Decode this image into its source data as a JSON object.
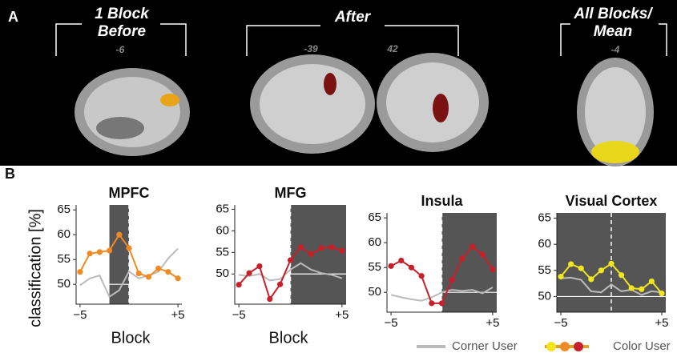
{
  "figure": {
    "panel_a": "A",
    "panel_b": "B",
    "groups": [
      {
        "title_lines": [
          "1 Block",
          "Before"
        ],
        "slices": [
          "-6"
        ]
      },
      {
        "title_lines": [
          "After"
        ],
        "slices": [
          "-39",
          "42"
        ]
      },
      {
        "title_lines": [
          "All Blocks/",
          "Mean"
        ],
        "slices": [
          "-4"
        ]
      }
    ],
    "y_label": "classification [%]",
    "x_label": "Block",
    "legend": {
      "corner": "Corner User",
      "color": "Color User"
    }
  },
  "chart_data": [
    {
      "type": "line",
      "title": "MPFC",
      "x": [
        -5,
        -4,
        -3,
        -2,
        -1,
        0,
        1,
        2,
        3,
        4,
        5
      ],
      "xlim": [
        -5.4,
        5.4
      ],
      "xticks": [
        {
          "value": -5,
          "label": "−5"
        },
        {
          "value": 5,
          "label": "+5"
        }
      ],
      "ylim": [
        46,
        66
      ],
      "yticks": [
        50,
        55,
        60,
        65
      ],
      "shade": [
        -2,
        0
      ],
      "vline": 0,
      "hline": 50,
      "series": [
        {
          "color": "#bbbbbb",
          "values": [
            49.8,
            51.2,
            51.8,
            47.5,
            48.8,
            52.6,
            51.2,
            51.8,
            52.5,
            55.2,
            57.2
          ]
        },
        {
          "color": "#f08a24",
          "markers": true,
          "values": [
            52.5,
            56.2,
            56.5,
            56.8,
            60,
            57.3,
            52.2,
            51.5,
            53.2,
            52.5,
            51.2
          ]
        }
      ]
    },
    {
      "type": "line",
      "title": "MFG",
      "x": [
        -5,
        -4,
        -3,
        -2,
        -1,
        0,
        1,
        2,
        3,
        4,
        5
      ],
      "xlim": [
        -5.4,
        5.4
      ],
      "xticks": [
        {
          "value": -5,
          "label": "−5"
        },
        {
          "value": 5,
          "label": "+5"
        }
      ],
      "ylim": [
        43,
        66
      ],
      "yticks": [
        50,
        55,
        60,
        65
      ],
      "shade": [
        0,
        5.4
      ],
      "vline": 0,
      "hline": 50,
      "series": [
        {
          "color": "#bbbbbb",
          "values": [
            49.8,
            49.5,
            50,
            48.5,
            48.8,
            51,
            52.5,
            51,
            50.2,
            49.8,
            49
          ]
        },
        {
          "color": "#c8202a",
          "markers": true,
          "values": [
            47.5,
            50.2,
            51.8,
            44.2,
            47.6,
            53.2,
            56.2,
            54.6,
            56,
            56.2,
            55.4
          ]
        }
      ]
    },
    {
      "type": "line",
      "title": "Insula",
      "x": [
        -5,
        -4,
        -3,
        -2,
        -1,
        0,
        1,
        2,
        3,
        4,
        5
      ],
      "xlim": [
        -5.4,
        5.4
      ],
      "xticks": [
        {
          "value": -5,
          "label": "−5"
        },
        {
          "value": 5,
          "label": "+5"
        }
      ],
      "ylim": [
        46,
        66
      ],
      "yticks": [
        50,
        55,
        60,
        65
      ],
      "shade": [
        0,
        5.4
      ],
      "vline": 0,
      "hline": 50,
      "series": [
        {
          "color": "#bbbbbb",
          "values": [
            49.5,
            49,
            48.6,
            48.3,
            49,
            50,
            50.5,
            50.3,
            50.5,
            49.8,
            51
          ]
        },
        {
          "color": "#c8202a",
          "markers": true,
          "values": [
            55.3,
            56.4,
            55,
            53.3,
            47.8,
            47.8,
            52.5,
            56.8,
            59.2,
            57.6,
            54.6
          ]
        }
      ]
    },
    {
      "type": "line",
      "title": "Visual Cortex",
      "x": [
        -5,
        -4,
        -3,
        -2,
        -1,
        0,
        1,
        2,
        3,
        4,
        5
      ],
      "xlim": [
        -5.4,
        5.4
      ],
      "xticks": [
        {
          "value": -5,
          "label": "−5"
        },
        {
          "value": 5,
          "label": "+5"
        }
      ],
      "ylim": [
        47,
        66
      ],
      "yticks": [
        50,
        55,
        60,
        65
      ],
      "shade": [
        -5.4,
        5.4
      ],
      "vline": 0,
      "hline": 50,
      "series": [
        {
          "color": "#bbbbbb",
          "values": [
            53.5,
            53.6,
            53.2,
            51,
            50.8,
            52.3,
            51,
            51.3,
            50.3,
            51,
            50.8
          ]
        },
        {
          "color": "#f2e61e",
          "markers": true,
          "values": [
            53.8,
            56.2,
            55.4,
            53.3,
            55,
            56.3,
            54.1,
            51.6,
            51.4,
            52.9,
            50.6
          ]
        }
      ]
    }
  ]
}
